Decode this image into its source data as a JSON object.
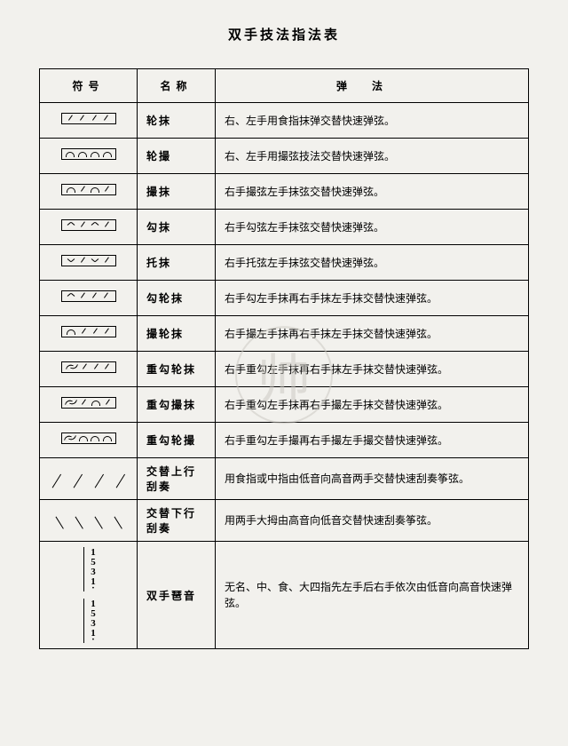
{
  "title": "双手技法指法表",
  "headers": {
    "symbol": "符号",
    "name": "名称",
    "method": "弹法"
  },
  "rows": [
    {
      "sym": "ticks4",
      "name": "轮抹",
      "desc": "右、左手用食指抹弹交替快速弹弦。"
    },
    {
      "sym": "arcs4",
      "name": "轮撮",
      "desc": "右、左手用撮弦技法交替快速弹弦。"
    },
    {
      "sym": "arc-tick",
      "name": "撮抹",
      "desc": "右手撮弦左手抹弦交替快速弹弦。"
    },
    {
      "sym": "caret-tick",
      "name": "勾抹",
      "desc": "右手勾弦左手抹弦交替快速弹弦。"
    },
    {
      "sym": "vee-tick",
      "name": "托抹",
      "desc": "右手托弦左手抹弦交替快速弹弦。"
    },
    {
      "sym": "caret-tick2",
      "name": "勾轮抹",
      "desc": "右手勾左手抹再右手抹左手抹交替快速弹弦。"
    },
    {
      "sym": "arc-tick2",
      "name": "撮轮抹",
      "desc": "右手撮左手抹再右手抹左手抹交替快速弹弦。"
    },
    {
      "sym": "wave-tick",
      "name": "重勾轮抹",
      "desc": "右手重勾左手抹再右手抹左手抹交替快速弹弦。"
    },
    {
      "sym": "wave-arc",
      "name": "重勾撮抹",
      "desc": "右手重勾左手抹再右手撮左手抹交替快速弹弦。"
    },
    {
      "sym": "wave-arcs",
      "name": "重勾轮撮",
      "desc": "右手重勾左手撮再右手撮左手撮交替快速弹弦。"
    },
    {
      "sym": "gliss-up",
      "name": "交替上行刮奏",
      "desc": "用食指或中指由低音向高音两手交替快速刮奏筝弦。"
    },
    {
      "sym": "gliss-dn",
      "name": "交替下行刮奏",
      "desc": "用两手大拇由高音向低音交替快速刮奏筝弦。"
    },
    {
      "sym": "tremolo",
      "name": "双手琶音",
      "desc": "无名、中、食、大四指先左手后右手依次由低音向高音快速弹弦。"
    }
  ],
  "tremolo": {
    "set1": [
      "1",
      "5",
      "3",
      "1"
    ],
    "set2": [
      "1",
      "5",
      "3",
      "1"
    ]
  },
  "colors": {
    "bg": "#f2f1ed",
    "ink": "#000000",
    "wm": "#c9c7c0"
  }
}
